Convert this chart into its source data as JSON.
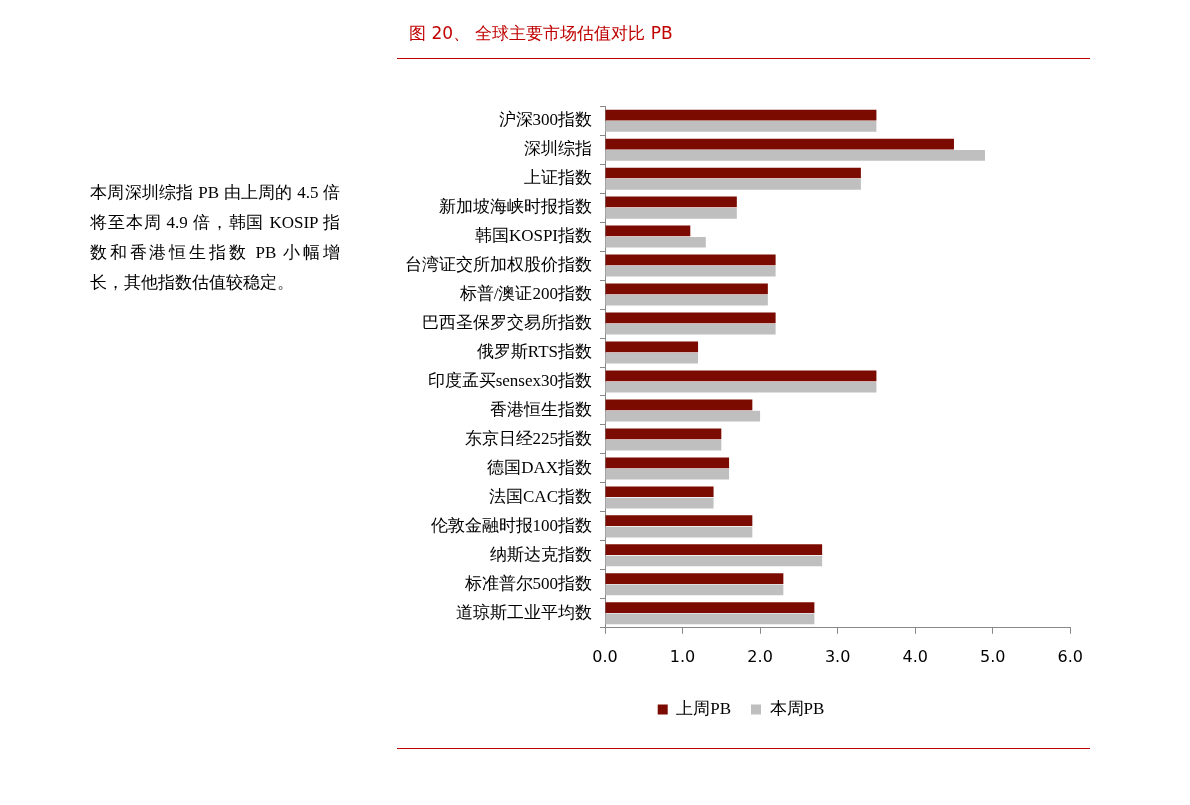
{
  "chart_data": {
    "type": "bar",
    "orientation": "horizontal",
    "title": "图 20、 全球主要市场估值对比 PB",
    "categories": [
      "沪深300指数",
      "深圳综指",
      "上证指数",
      "新加坡海峡时报指数",
      "韩国KOSPI指数",
      "台湾证交所加权股价指数",
      "标普/澳证200指数",
      "巴西圣保罗交易所指数",
      "俄罗斯RTS指数",
      "印度孟买sensex30指数",
      "香港恒生指数",
      "东京日经225指数",
      "德国DAX指数",
      "法国CAC指数",
      "伦敦金融时报100指数",
      "纳斯达克指数",
      "标准普尔500指数",
      "道琼斯工业平均数"
    ],
    "series": [
      {
        "name": "上周PB",
        "color": "#7b0a00",
        "values": [
          3.5,
          4.5,
          3.3,
          1.7,
          1.1,
          2.2,
          2.1,
          2.2,
          1.2,
          3.5,
          1.9,
          1.5,
          1.6,
          1.4,
          1.9,
          2.8,
          2.3,
          2.7
        ]
      },
      {
        "name": "本周PB",
        "color": "#bfbfbf",
        "values": [
          3.5,
          4.9,
          3.3,
          1.7,
          1.3,
          2.2,
          2.1,
          2.2,
          1.2,
          3.5,
          2.0,
          1.5,
          1.6,
          1.4,
          1.9,
          2.8,
          2.3,
          2.7
        ]
      }
    ],
    "xlim": [
      0,
      6
    ],
    "xticks": [
      {
        "value": 0,
        "label": "0.0"
      },
      {
        "value": 1,
        "label": "1.0"
      },
      {
        "value": 2,
        "label": "2.0"
      },
      {
        "value": 3,
        "label": "3.0"
      },
      {
        "value": 4,
        "label": "4.0"
      },
      {
        "value": 5,
        "label": "5.0"
      },
      {
        "value": 6,
        "label": "6.0"
      }
    ],
    "legend": "bottom",
    "annotations": [
      "本周深圳综指 PB 由上周的 4.5 倍将至本周 4.9 倍，韩国 KOSIP 指数和香港恒生指数 PB 小幅增长，其他指数估值较稳定。"
    ]
  }
}
